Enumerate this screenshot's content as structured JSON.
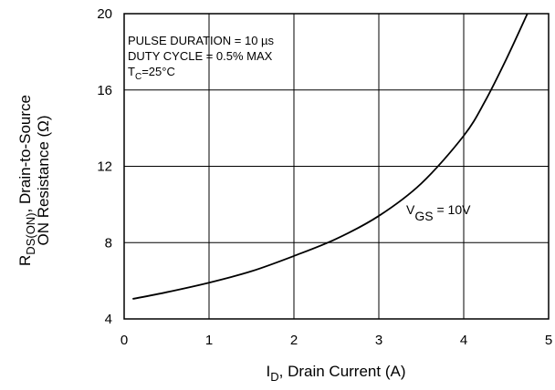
{
  "chart_data": {
    "type": "line",
    "xlabel": {
      "main": "I",
      "sub": "D",
      "rest": ", Drain Current (A)"
    },
    "ylabel": {
      "line1": {
        "main": "R",
        "sub": "DS(ON)",
        "rest": ", Drain-to-Source"
      },
      "line2": "ON Resistance (Ω)"
    },
    "xlim": [
      0,
      5
    ],
    "ylim": [
      4,
      20
    ],
    "xticks": [
      0,
      1,
      2,
      3,
      4,
      5
    ],
    "yticks": [
      4,
      8,
      12,
      16,
      20
    ],
    "grid": true,
    "annotations": {
      "pulse": "PULSE DURATION = 10 µs",
      "duty": "DUTY CYCLE = 0.5% MAX",
      "tc": {
        "main": "T",
        "sub": "C",
        "rest": "=25°C"
      }
    },
    "series": [
      {
        "label": {
          "main": "V",
          "sub": "GS",
          "rest": " = 10V"
        },
        "color": "#000000",
        "x": [
          0.1,
          0.5,
          1.0,
          1.5,
          2.0,
          2.5,
          3.0,
          3.5,
          4.0,
          4.25,
          4.5,
          4.75
        ],
        "y": [
          5.05,
          5.4,
          5.9,
          6.5,
          7.3,
          8.2,
          9.4,
          11.1,
          13.6,
          15.4,
          17.6,
          20.0
        ]
      }
    ]
  }
}
